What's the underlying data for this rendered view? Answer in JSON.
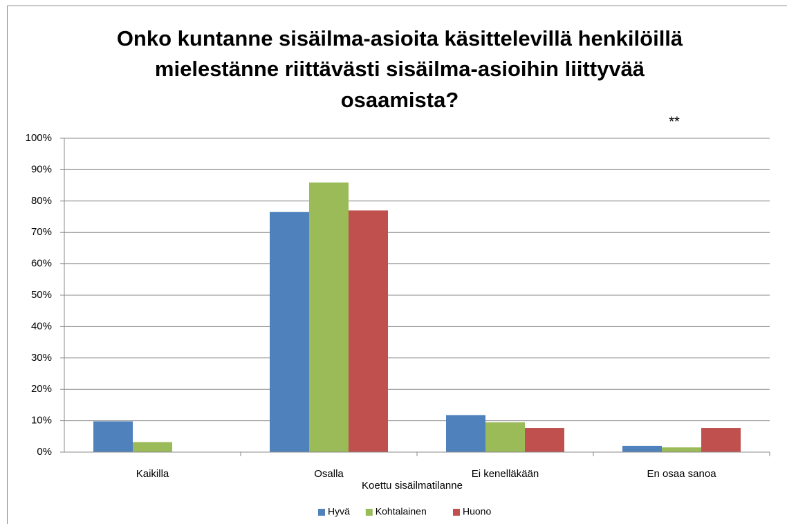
{
  "chart_data": {
    "type": "bar",
    "title": [
      "Onko kuntanne sisäilma-asioita käsittelevillä henkilöillä",
      "mielestänne riittävästi sisäilma-asioihin liittyvää",
      "osaamista?"
    ],
    "annotation": "**",
    "x_label": "Koettu sisäilmatilanne",
    "categories": [
      "Kaikilla",
      "Osalla",
      "Ei kenelläkään",
      "En osaa sanoa"
    ],
    "series": [
      {
        "name": "Hyvä",
        "color": "#4f81bd",
        "values": [
          9.8,
          76.5,
          11.8,
          2.0
        ]
      },
      {
        "name": "Kohtalainen",
        "color": "#9bbb59",
        "values": [
          3.2,
          85.9,
          9.5,
          1.5
        ]
      },
      {
        "name": "Huono",
        "color": "#c0504d",
        "values": [
          0,
          77.0,
          7.7,
          7.7
        ]
      }
    ],
    "ylim": [
      0,
      100
    ],
    "yticks": [
      {
        "value": 0,
        "label": "0%"
      },
      {
        "value": 10,
        "label": "10%"
      },
      {
        "value": 20,
        "label": "20%"
      },
      {
        "value": 30,
        "label": "30%"
      },
      {
        "value": 40,
        "label": "40%"
      },
      {
        "value": 50,
        "label": "50%"
      },
      {
        "value": 60,
        "label": "60%"
      },
      {
        "value": 70,
        "label": "70%"
      },
      {
        "value": 80,
        "label": "80%"
      },
      {
        "value": 90,
        "label": "90%"
      },
      {
        "value": 100,
        "label": "100%"
      }
    ],
    "grid": true,
    "legend": "bottom"
  }
}
